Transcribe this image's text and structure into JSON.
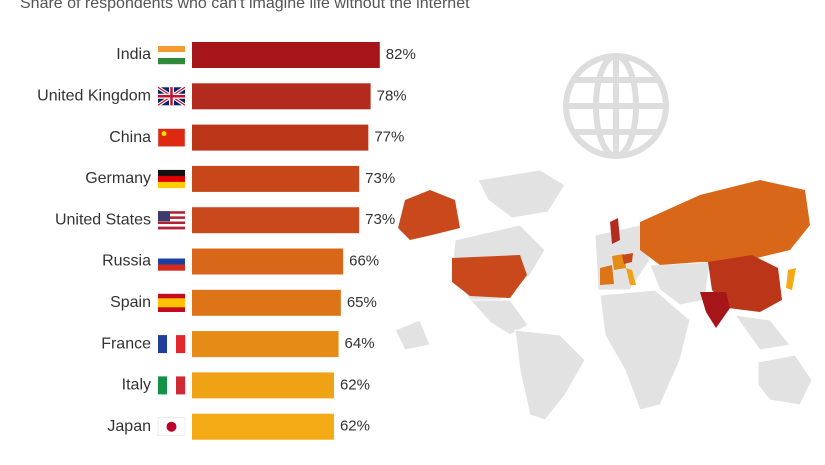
{
  "chart_data": {
    "type": "bar",
    "orientation": "horizontal",
    "subtitle": "Share of respondents who can't imagine life without the internet",
    "categories": [
      "India",
      "United Kingdom",
      "China",
      "Germany",
      "United States",
      "Russia",
      "Spain",
      "France",
      "Italy",
      "Japan"
    ],
    "values": [
      82,
      78,
      77,
      73,
      73,
      66,
      65,
      64,
      62,
      62
    ],
    "value_labels": [
      "82%",
      "78%",
      "77%",
      "73%",
      "73%",
      "66%",
      "65%",
      "64%",
      "62%",
      "62%"
    ],
    "colors": [
      "#a5151a",
      "#b32a1e",
      "#bb3519",
      "#c7471b",
      "#c9491c",
      "#d9671a",
      "#de7418",
      "#e68b16",
      "#f0a215",
      "#f4aa14"
    ]
  }
}
